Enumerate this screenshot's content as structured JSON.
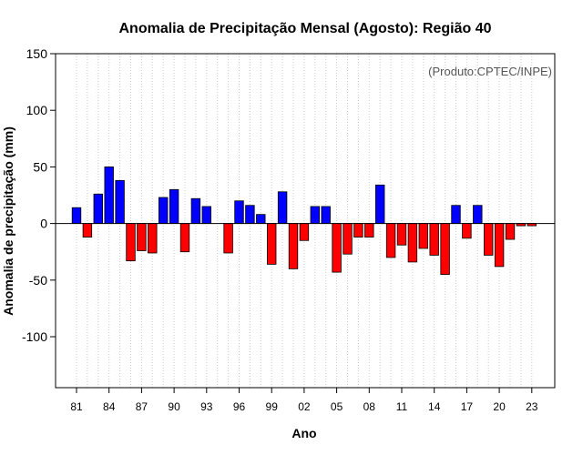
{
  "chart_data": {
    "type": "bar",
    "title": "Anomalia de Precipitação Mensal (Agosto): Região 40",
    "xlabel": "Ano",
    "ylabel": "Anomalia de precipitação (mm)",
    "credit": "(Produto:CPTEC/INPE)",
    "ylim": [
      -145,
      150
    ],
    "yticks": [
      150,
      100,
      50,
      0,
      -50,
      -100
    ],
    "x_tick_labels": [
      "81",
      "84",
      "87",
      "90",
      "93",
      "96",
      "99",
      "02",
      "05",
      "08",
      "11",
      "14",
      "17",
      "20",
      "23"
    ],
    "years": [
      1981,
      1982,
      1983,
      1984,
      1985,
      1986,
      1987,
      1988,
      1989,
      1990,
      1991,
      1992,
      1993,
      1994,
      1995,
      1996,
      1997,
      1998,
      1999,
      2000,
      2001,
      2002,
      2003,
      2004,
      2005,
      2006,
      2007,
      2008,
      2009,
      2010,
      2011,
      2012,
      2013,
      2014,
      2015,
      2016,
      2017,
      2018,
      2019,
      2020,
      2021,
      2022,
      2023
    ],
    "values": [
      14,
      -12,
      26,
      50,
      38,
      -33,
      -24,
      -26,
      23,
      30,
      -25,
      22,
      15,
      0,
      -26,
      20,
      16,
      8,
      -36,
      28,
      -40,
      -15,
      15,
      15,
      -43,
      -27,
      -12,
      -12,
      34,
      -30,
      -19,
      -34,
      -22,
      -28,
      -45,
      16,
      -13,
      16,
      -28,
      -38,
      -14,
      -2,
      -2
    ],
    "positive_color": "#0000ff",
    "negative_color": "#ff0000",
    "grid": true,
    "grid_style": "vertical dotted lines at each year"
  }
}
